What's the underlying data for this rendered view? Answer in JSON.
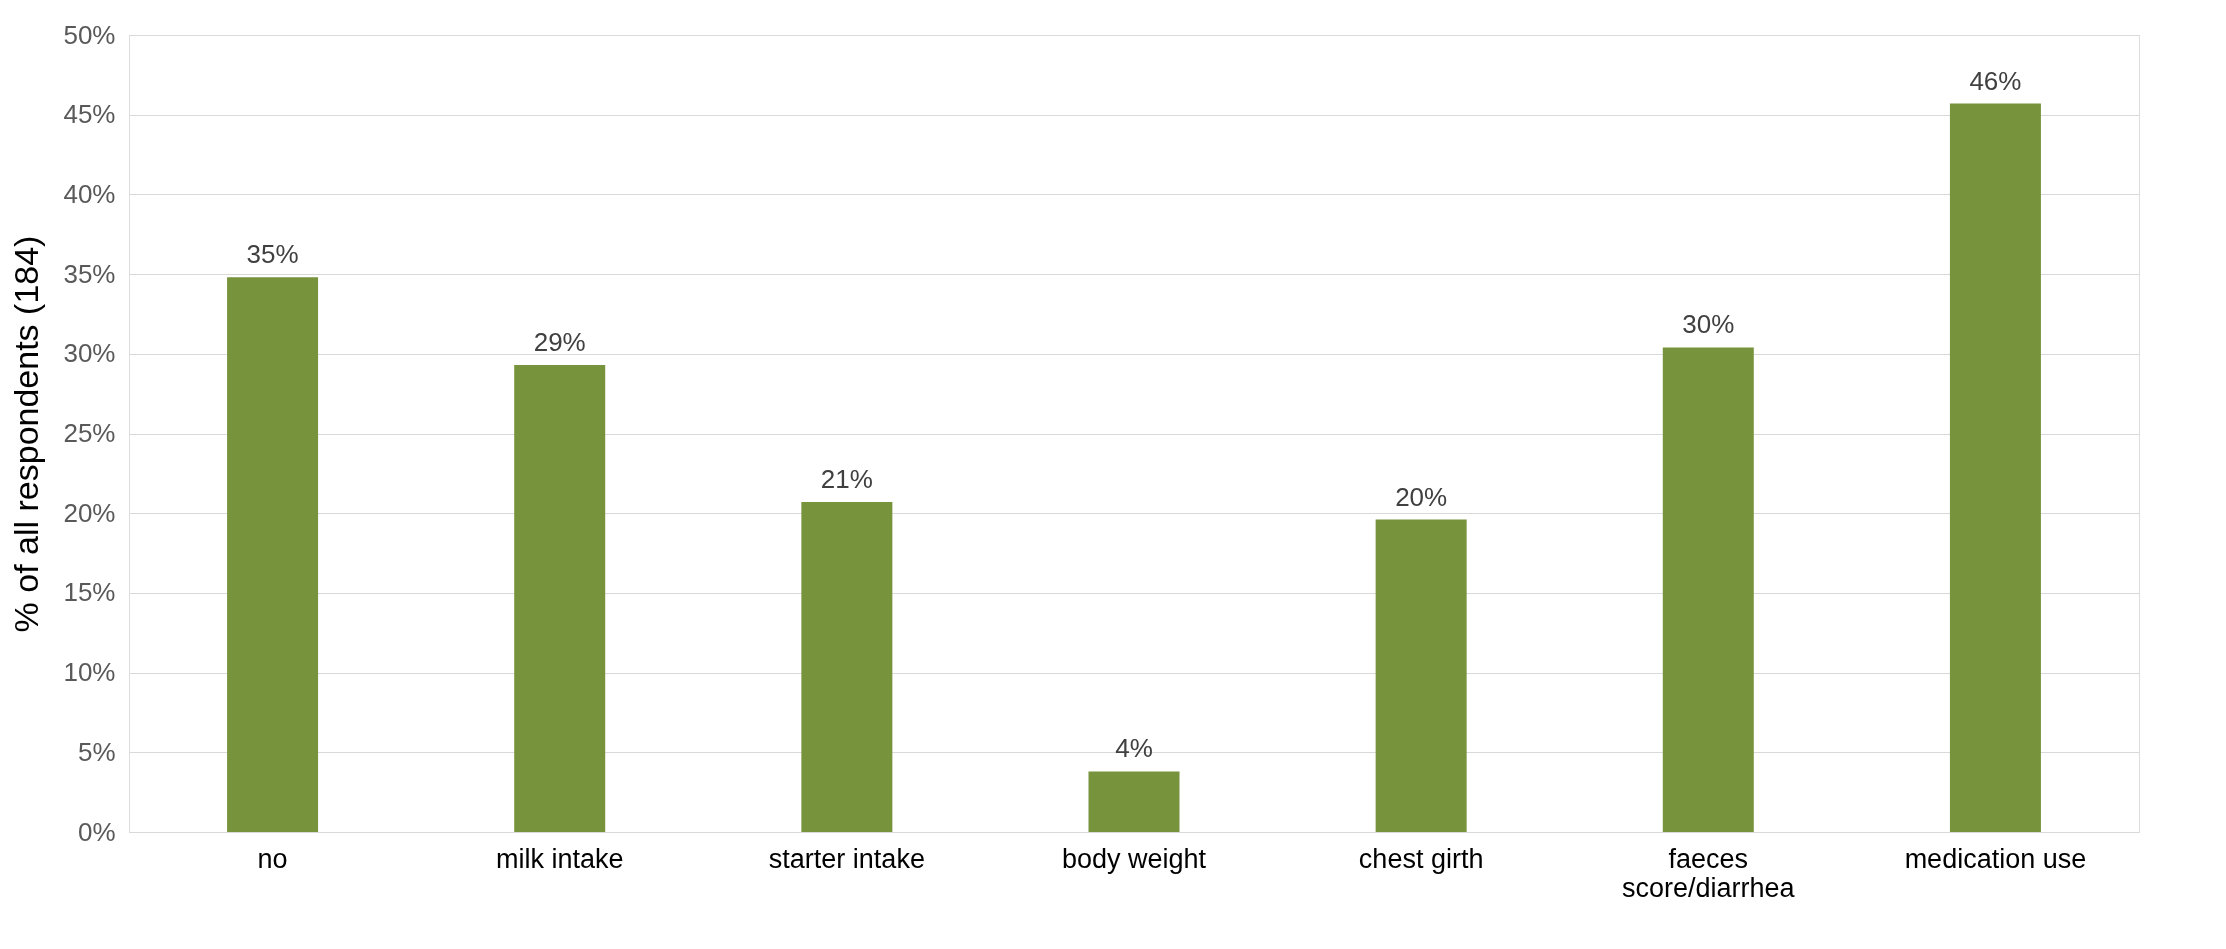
{
  "chart_data": {
    "type": "bar",
    "ylabel": "% of all respondents (184)",
    "categories": [
      "no",
      "milk intake",
      "starter intake",
      "body weight",
      "chest girth",
      "faeces score/diarrhea",
      "medication use"
    ],
    "values": [
      34.8,
      29.3,
      20.7,
      3.8,
      19.6,
      30.4,
      45.7
    ],
    "value_labels": [
      "35%",
      "29%",
      "21%",
      "4%",
      "20%",
      "30%",
      "46%"
    ],
    "color": "#77933c",
    "ylim": [
      0,
      50
    ],
    "yticks": [
      {
        "value": 0,
        "label": "0%"
      },
      {
        "value": 5,
        "label": "5%"
      },
      {
        "value": 10,
        "label": "10%"
      },
      {
        "value": 15,
        "label": "15%"
      },
      {
        "value": 20,
        "label": "20%"
      },
      {
        "value": 25,
        "label": "25%"
      },
      {
        "value": 30,
        "label": "30%"
      },
      {
        "value": 35,
        "label": "35%"
      },
      {
        "value": 40,
        "label": "40%"
      },
      {
        "value": 45,
        "label": "45%"
      },
      {
        "value": 50,
        "label": "50%"
      }
    ],
    "grid": "y"
  }
}
